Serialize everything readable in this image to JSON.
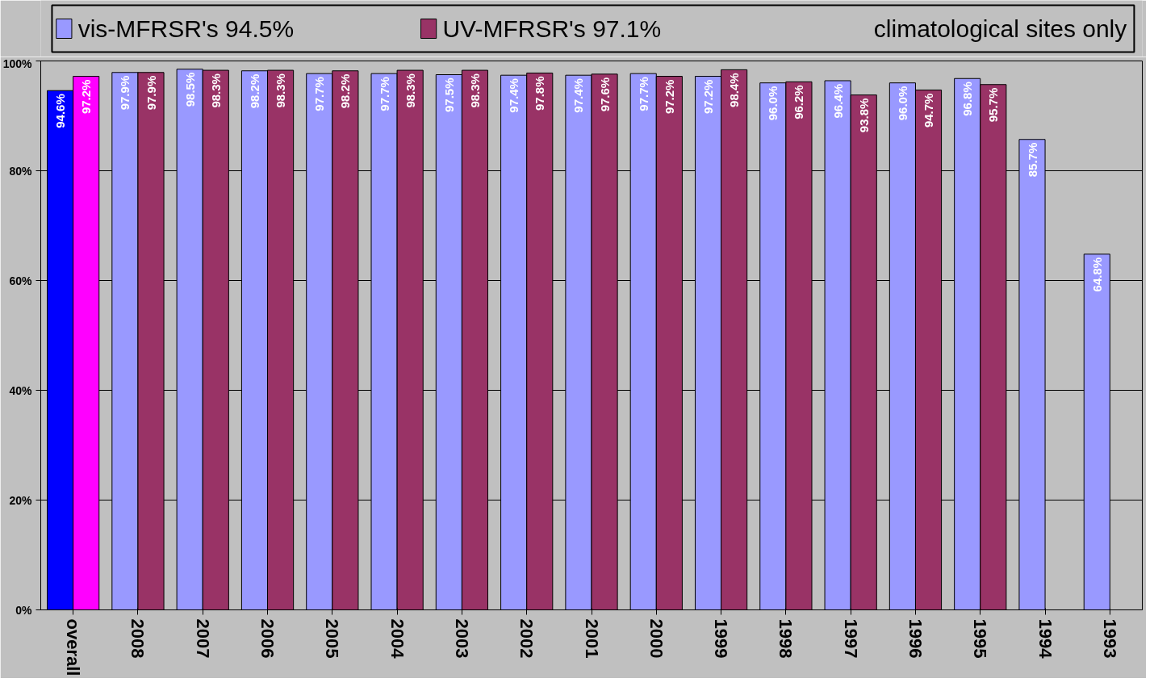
{
  "chart_data": {
    "type": "bar",
    "categories": [
      "overall",
      "2008",
      "2007",
      "2006",
      "2005",
      "2004",
      "2003",
      "2002",
      "2001",
      "2000",
      "1999",
      "1998",
      "1997",
      "1996",
      "1995",
      "1994",
      "1993"
    ],
    "series": [
      {
        "name": "vis-MFRSR's  94.5%",
        "color": "#9999ff",
        "colors": [
          "#0000ff",
          "#9999ff",
          "#9999ff",
          "#9999ff",
          "#9999ff",
          "#9999ff",
          "#9999ff",
          "#9999ff",
          "#9999ff",
          "#9999ff",
          "#9999ff",
          "#9999ff",
          "#9999ff",
          "#9999ff",
          "#9999ff",
          "#9999ff",
          "#9999ff"
        ],
        "values": [
          94.6,
          97.9,
          98.5,
          98.2,
          97.7,
          97.7,
          97.5,
          97.4,
          97.4,
          97.7,
          97.2,
          96.0,
          96.4,
          96.0,
          96.8,
          85.7,
          64.8
        ],
        "value_labels": [
          "94.6%",
          "97.9%",
          "98.5%",
          "98.2%",
          "97.7%",
          "97.7%",
          "97.5%",
          "97.4%",
          "97.4%",
          "97.7%",
          "97.2%",
          "96.0%",
          "96.4%",
          "96.0%",
          "96.8%",
          "85.7%",
          "64.8%"
        ]
      },
      {
        "name": "UV-MFRSR's  97.1%",
        "color": "#993366",
        "colors": [
          "#ff00ff",
          "#993366",
          "#993366",
          "#993366",
          "#993366",
          "#993366",
          "#993366",
          "#993366",
          "#993366",
          "#993366",
          "#993366",
          "#993366",
          "#993366",
          "#993366",
          "#993366",
          "#993366",
          "#993366"
        ],
        "values": [
          97.2,
          97.9,
          98.3,
          98.3,
          98.2,
          98.3,
          98.3,
          97.8,
          97.6,
          97.2,
          98.4,
          96.2,
          93.8,
          94.7,
          95.7,
          null,
          null
        ],
        "value_labels": [
          "97.2%",
          "97.9%",
          "98.3%",
          "98.3%",
          "98.2%",
          "98.3%",
          "98.3%",
          "97.8%",
          "97.6%",
          "97.2%",
          "98.4%",
          "96.2%",
          "93.8%",
          "94.7%",
          "95.7%",
          null,
          null
        ]
      }
    ],
    "annotations": [
      "climatological sites only"
    ],
    "ylim": [
      0,
      100
    ],
    "yticks": [
      {
        "value": 0,
        "label": "0%"
      },
      {
        "value": 20,
        "label": "20%"
      },
      {
        "value": 40,
        "label": "40%"
      },
      {
        "value": 60,
        "label": "60%"
      },
      {
        "value": 80,
        "label": "80%"
      },
      {
        "value": 100,
        "label": "100%"
      }
    ],
    "grid": "y",
    "legend": "top"
  }
}
